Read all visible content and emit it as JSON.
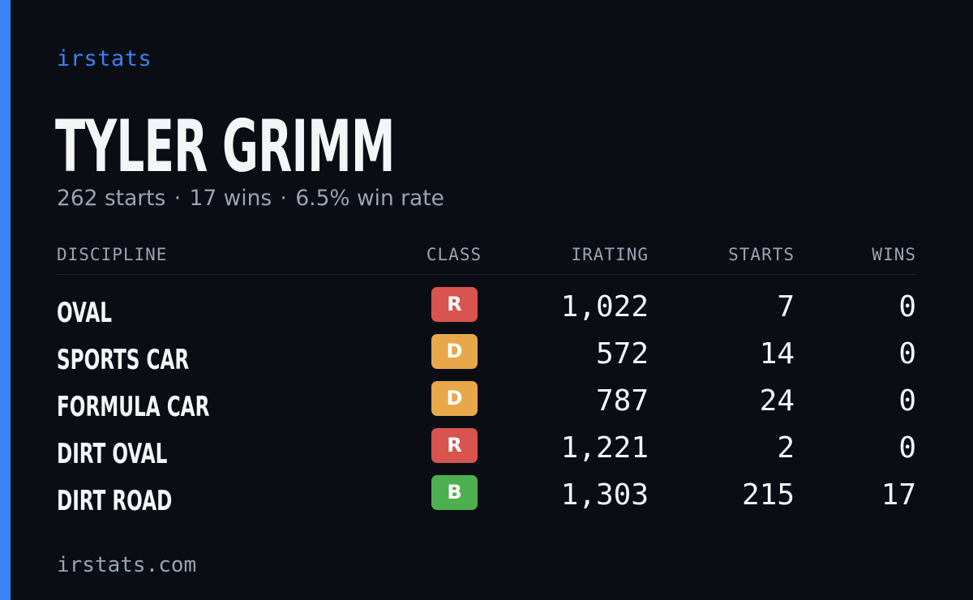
{
  "brand": "irstats",
  "player": {
    "name": "TYLER GRIMM",
    "starts_text": "262 starts",
    "wins_text": "17 wins",
    "win_rate_text": "6.5% win rate",
    "separator": "·"
  },
  "table": {
    "headers": {
      "discipline": "DISCIPLINE",
      "class": "CLASS",
      "irating": "IRATING",
      "starts": "STARTS",
      "wins": "WINS"
    },
    "rows": [
      {
        "discipline": "OVAL",
        "class": "R",
        "class_color": "#d9534f",
        "irating": "1,022",
        "starts": "7",
        "wins": "0"
      },
      {
        "discipline": "SPORTS CAR",
        "class": "D",
        "class_color": "#e8a84a",
        "irating": "572",
        "starts": "14",
        "wins": "0"
      },
      {
        "discipline": "FORMULA CAR",
        "class": "D",
        "class_color": "#e8a84a",
        "irating": "787",
        "starts": "24",
        "wins": "0"
      },
      {
        "discipline": "DIRT OVAL",
        "class": "R",
        "class_color": "#d9534f",
        "irating": "1,221",
        "starts": "2",
        "wins": "0"
      },
      {
        "discipline": "DIRT ROAD",
        "class": "B",
        "class_color": "#4caf50",
        "irating": "1,303",
        "starts": "215",
        "wins": "17"
      }
    ]
  },
  "footer": "irstats.com",
  "colors": {
    "accent": "#3b82f6",
    "background": "#0a0d14",
    "text": "#f4f5f7",
    "muted": "#9aa3b2"
  }
}
